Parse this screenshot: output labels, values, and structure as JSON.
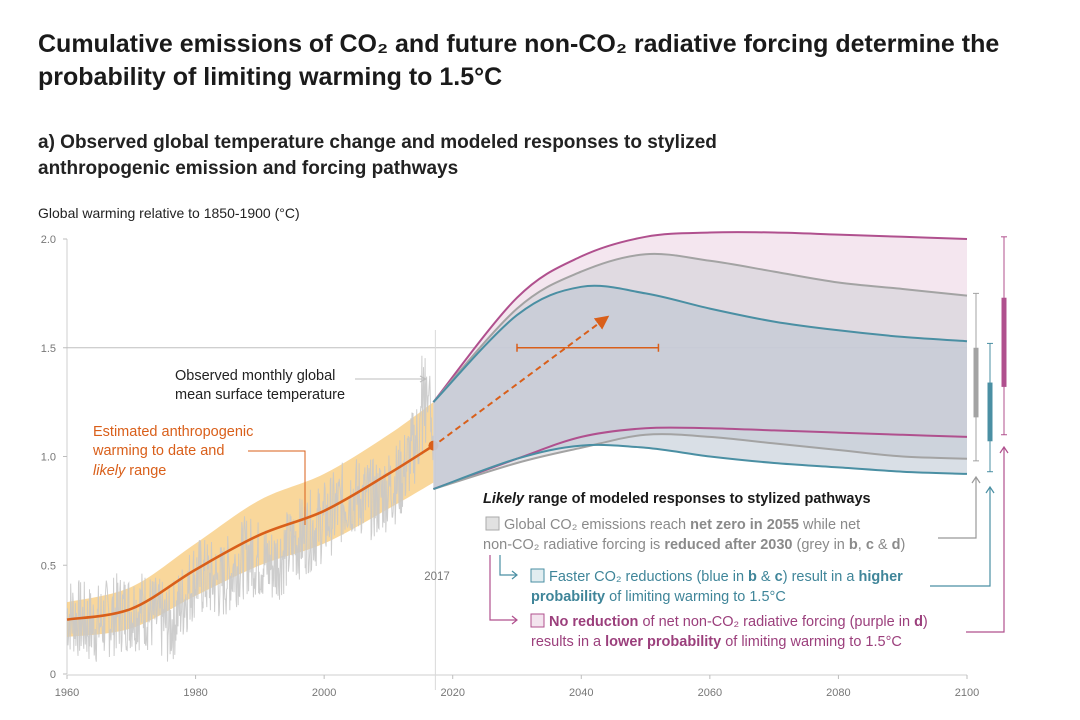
{
  "title": "Cumulative emissions of CO₂ and future non-CO₂ radiative forcing determine the probability of limiting warming to 1.5°C",
  "subtitle": "a) Observed global temperature change and modeled responses to stylized anthropogenic emission and forcing pathways",
  "colors": {
    "observed": "#c8c8c8",
    "anthropogenic": "#d95f1a",
    "anthropogenic_range": "#f7c97a",
    "grey_pathway": "#a3a3a3",
    "blue_pathway": "#4a8fa3",
    "purple_pathway": "#b0508e",
    "shade": "#b9c4d2"
  },
  "chart_data": {
    "type": "line",
    "ylabel": "Global warming relative to 1850-1900 (°C)",
    "xlim": [
      1960,
      2100
    ],
    "ylim": [
      0,
      2.0
    ],
    "x_ticks": [
      "1960",
      "1980",
      "2000",
      "2020",
      "2040",
      "2060",
      "2080",
      "2100"
    ],
    "y_ticks": [
      "0",
      "0.5",
      "1.0",
      "1.5",
      "2.0"
    ],
    "reference_line_y": 1.5,
    "marker_year_label": "2017",
    "series": [
      {
        "name": "Estimated anthropogenic warming to date",
        "x": [
          1960,
          1970,
          1980,
          1990,
          2000,
          2010,
          2017
        ],
        "y": [
          0.25,
          0.3,
          0.48,
          0.64,
          0.75,
          0.92,
          1.05
        ]
      },
      {
        "name": "likely range",
        "x": [
          1960,
          1970,
          1980,
          1990,
          2000,
          2010,
          2017
        ],
        "lower": [
          0.17,
          0.21,
          0.36,
          0.5,
          0.6,
          0.76,
          0.88
        ],
        "upper": [
          0.33,
          0.4,
          0.6,
          0.8,
          0.92,
          1.1,
          1.25
        ]
      },
      {
        "name": "Observed monthly global mean surface temperature",
        "x": [
          1960,
          1964,
          1968,
          1972,
          1976,
          1980,
          1984,
          1988,
          1992,
          1996,
          2000,
          2004,
          2008,
          2012,
          2016,
          2017
        ],
        "y": [
          0.28,
          0.22,
          0.28,
          0.3,
          0.22,
          0.45,
          0.42,
          0.55,
          0.5,
          0.62,
          0.7,
          0.82,
          0.8,
          0.9,
          1.2,
          1.1
        ]
      },
      {
        "name": "Grey pathway range",
        "x": [
          2017,
          2030,
          2040,
          2050,
          2060,
          2070,
          2080,
          2090,
          2100
        ],
        "upper": [
          1.25,
          1.68,
          1.85,
          1.93,
          1.9,
          1.85,
          1.8,
          1.77,
          1.74
        ],
        "lower": [
          0.85,
          0.97,
          1.04,
          1.1,
          1.09,
          1.06,
          1.03,
          1.0,
          0.99
        ]
      },
      {
        "name": "Blue pathway range",
        "x": [
          2017,
          2030,
          2040,
          2050,
          2060,
          2070,
          2080,
          2090,
          2100
        ],
        "upper": [
          1.25,
          1.65,
          1.78,
          1.75,
          1.68,
          1.62,
          1.58,
          1.55,
          1.53
        ],
        "lower": [
          0.85,
          0.99,
          1.05,
          1.04,
          1.0,
          0.97,
          0.95,
          0.93,
          0.92
        ]
      },
      {
        "name": "Purple pathway range",
        "x": [
          2017,
          2030,
          2040,
          2050,
          2060,
          2070,
          2080,
          2090,
          2100
        ],
        "upper": [
          1.25,
          1.73,
          1.92,
          2.01,
          2.03,
          2.03,
          2.02,
          2.01,
          2.0
        ],
        "lower": [
          0.85,
          0.99,
          1.09,
          1.13,
          1.13,
          1.12,
          1.11,
          1.1,
          1.09
        ]
      }
    ],
    "projection_arrow": {
      "x": [
        2017,
        2044
      ],
      "y": [
        1.05,
        1.64
      ]
    },
    "range_bar": {
      "x": [
        2030,
        2052
      ],
      "y": 1.5
    },
    "side_bars": [
      {
        "series": "grey",
        "whisker": [
          0.98,
          1.75
        ],
        "box": [
          1.18,
          1.5
        ]
      },
      {
        "series": "blue",
        "whisker": [
          0.93,
          1.52
        ],
        "box": [
          1.07,
          1.34
        ]
      },
      {
        "series": "purple",
        "whisker": [
          1.1,
          2.01
        ],
        "box": [
          1.32,
          1.73
        ]
      }
    ]
  },
  "annotations": {
    "observed_line1": "Observed monthly global",
    "observed_line2": "mean surface temperature",
    "anthro_line1": "Estimated anthropogenic",
    "anthro_line2": "warming to date and",
    "anthro_line3_italic": "likely",
    "anthro_line3_rest": " range"
  },
  "legend": {
    "heading_italic": "Likely",
    "heading_rest": " range of modeled responses to stylized pathways",
    "grey": {
      "line1": [
        {
          "t": "Global CO₂ emissions reach ",
          "b": false
        },
        {
          "t": "net zero in 2055",
          "b": true
        },
        {
          "t": " while net",
          "b": false
        }
      ],
      "line2": [
        {
          "t": "non-CO₂ radiative forcing is ",
          "b": false
        },
        {
          "t": "reduced after 2030",
          "b": true
        },
        {
          "t": " (grey in ",
          "b": false
        },
        {
          "t": "b",
          "b": true
        },
        {
          "t": ", ",
          "b": false
        },
        {
          "t": "c",
          "b": true
        },
        {
          "t": " & ",
          "b": false
        },
        {
          "t": "d",
          "b": true
        },
        {
          "t": ")",
          "b": false
        }
      ]
    },
    "blue": {
      "line1": [
        {
          "t": "Faster CO₂ reductions (blue in ",
          "b": false
        },
        {
          "t": "b",
          "b": true
        },
        {
          "t": " & ",
          "b": false
        },
        {
          "t": "c",
          "b": true
        },
        {
          "t": ") result in a ",
          "b": false
        },
        {
          "t": "higher",
          "b": true
        }
      ],
      "line2": [
        {
          "t": "probability",
          "b": true
        },
        {
          "t": " of limiting warming to 1.5°C",
          "b": false
        }
      ]
    },
    "purple": {
      "line1": [
        {
          "t": "No reduction",
          "b": true
        },
        {
          "t": " of net non-CO₂ radiative forcing (purple in ",
          "b": false
        },
        {
          "t": "d",
          "b": true
        },
        {
          "t": ")",
          "b": false
        }
      ],
      "line2": [
        {
          "t": "results in a ",
          "b": false
        },
        {
          "t": "lower probability",
          "b": true
        },
        {
          "t": " of limiting warming to 1.5°C",
          "b": false
        }
      ]
    }
  }
}
